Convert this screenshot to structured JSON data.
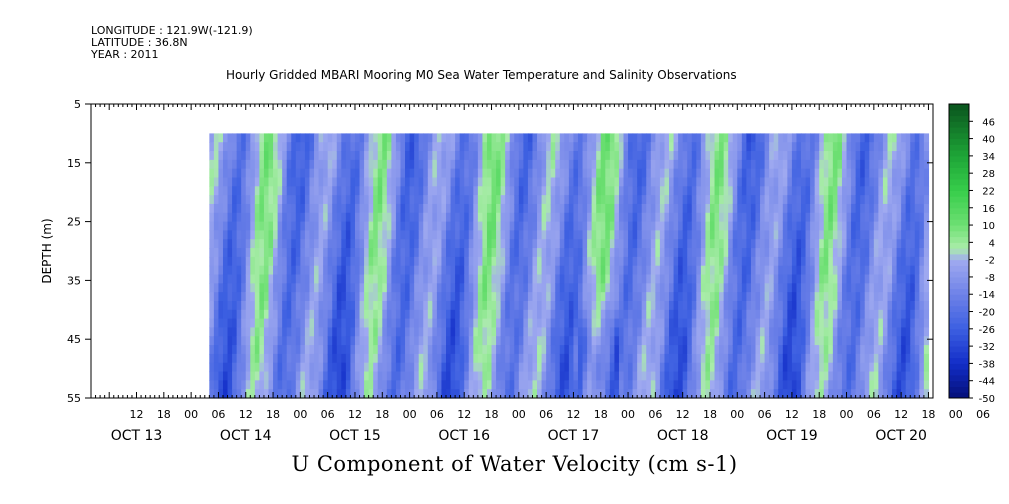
{
  "header": {
    "longitude": "LONGITUDE : 121.9W(-121.9)",
    "latitude": "LATITUDE : 36.8N",
    "year": "YEAR : 2011"
  },
  "chart_data": {
    "type": "heatmap",
    "title": "Hourly Gridded MBARI Mooring M0 Sea Water Temperature and Salinity Observations",
    "xlabel": "U Component of Water Velocity (cm s-1)",
    "ylabel": "DEPTH (m)",
    "y_ticks": [
      5,
      15,
      25,
      35,
      45,
      55
    ],
    "ylim": [
      5,
      55
    ],
    "data_depth_range": [
      10,
      55
    ],
    "hour_ticks": [
      "12",
      "18",
      "00",
      "06",
      "12",
      "18",
      "00",
      "06",
      "12",
      "18",
      "00",
      "06",
      "12",
      "18",
      "00",
      "06",
      "12",
      "18",
      "00",
      "06",
      "12",
      "18",
      "00",
      "06",
      "12",
      "18",
      "00",
      "06",
      "12",
      "18",
      "00",
      "06"
    ],
    "date_labels": [
      "OCT 13",
      "OCT 14",
      "OCT 15",
      "OCT 16",
      "OCT 17",
      "OCT 18",
      "OCT 19",
      "OCT 20"
    ],
    "colorbar_labels": [
      "46",
      "40",
      "34",
      "28",
      "22",
      "16",
      "10",
      "4",
      "-2",
      "-8",
      "-14",
      "-20",
      "-26",
      "-32",
      "-38",
      "-44",
      "-50"
    ],
    "colorbar_range": [
      -50,
      52
    ],
    "time_range_hours": [
      -10,
      175
    ],
    "data_start_hour": 16,
    "data_end_hour": 174,
    "colors": {
      "strong_neg": "#0a1cb4",
      "neg": "#4a62e0",
      "weak_neg": "#9aa6ee",
      "weak_pos": "#a6eda6",
      "pos": "#4fdc5a",
      "strong_pos": "#1aa82e",
      "axis": "#000000"
    }
  }
}
